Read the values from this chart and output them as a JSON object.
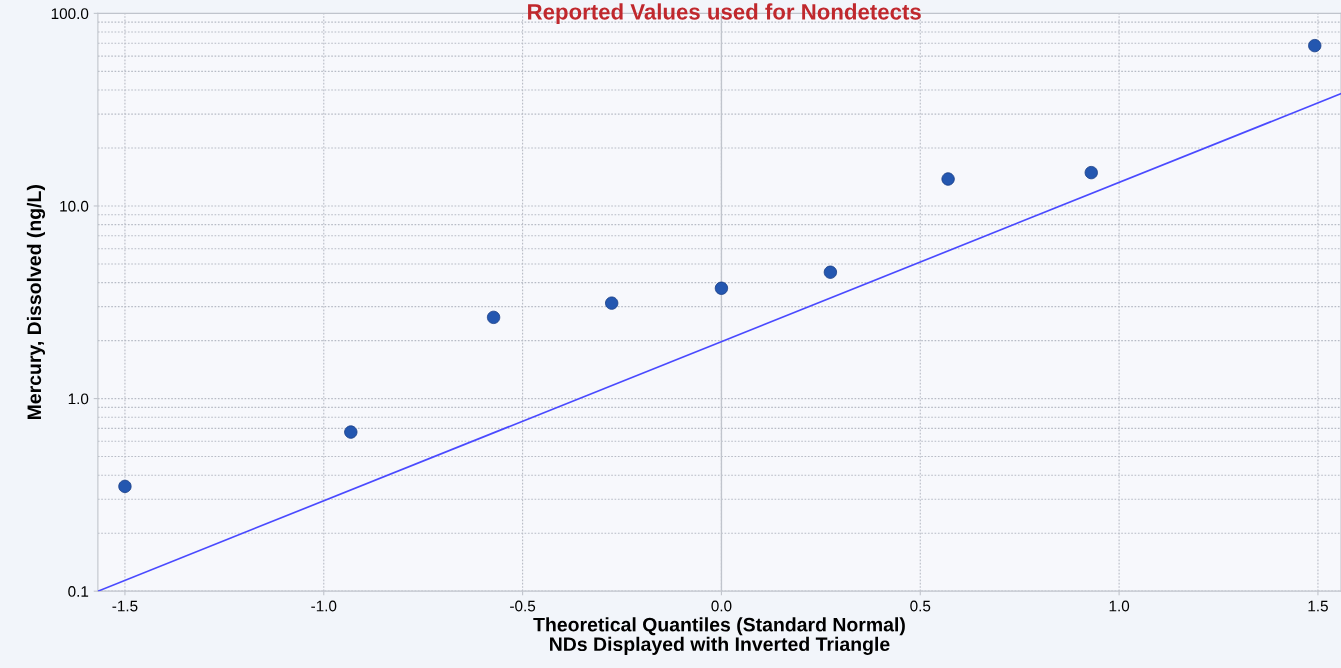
{
  "chart_data": {
    "type": "scatter",
    "title": "Reported Values used for Nondetects",
    "xlabel": "Theoretical Quantiles (Standard Normal)\nNDs Displayed with Inverted Triangle",
    "ylabel": "Mercury, Dissolved (ng/L)",
    "series": [
      {
        "type": "scatter",
        "color": "#2457b0",
        "marker": "circle",
        "x": [
          -1.5,
          -0.932,
          -0.573,
          -0.276,
          0.0,
          0.274,
          0.57,
          0.93,
          1.492
        ],
        "values": [
          0.35,
          0.67,
          2.64,
          3.13,
          3.74,
          4.53,
          13.8,
          14.9,
          68
        ]
      },
      {
        "type": "line",
        "color": "#4a4aff",
        "line_style": "solid",
        "x": [
          -1.568,
          1.558
        ],
        "values": [
          0.1,
          38.3
        ]
      }
    ],
    "log": "y",
    "xlim": [
      -1.568,
      1.558
    ],
    "ylim": [
      0.1,
      100
    ],
    "xticks": [
      {
        "value": -1.5,
        "label": "-1.5"
      },
      {
        "value": -1.0,
        "label": "-1.0"
      },
      {
        "value": -0.5,
        "label": "-0.5"
      },
      {
        "value": 0.0,
        "label": "0.0"
      },
      {
        "value": 0.5,
        "label": "0.5"
      },
      {
        "value": 1.0,
        "label": "1.0"
      },
      {
        "value": 1.5,
        "label": "1.5"
      }
    ],
    "yticks": [
      {
        "value": 0.1,
        "label": "0.1"
      },
      {
        "value": 1,
        "label": "1.0"
      },
      {
        "value": 10,
        "label": "10.0"
      },
      {
        "value": 100,
        "label": "100.0"
      }
    ],
    "grid": true,
    "ref_lines": [
      {
        "axis": "x",
        "value": 0,
        "color": "#c0c4cc"
      }
    ]
  }
}
